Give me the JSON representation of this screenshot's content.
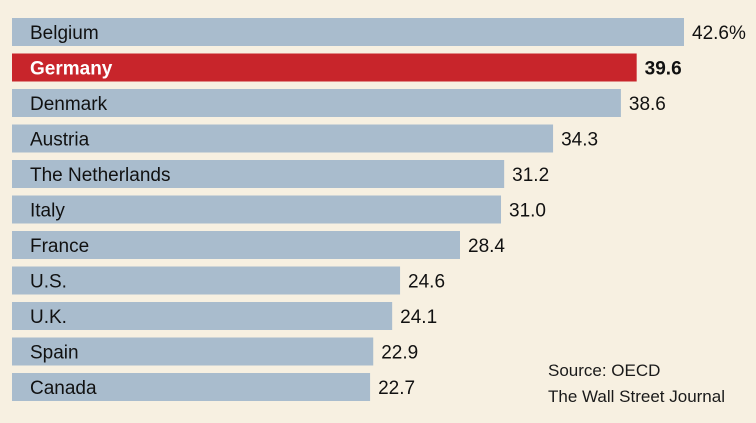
{
  "chart_data": {
    "type": "bar",
    "orientation": "horizontal",
    "categories": [
      "Belgium",
      "Germany",
      "Denmark",
      "Austria",
      "The Netherlands",
      "Italy",
      "France",
      "U.S.",
      "U.K.",
      "Spain",
      "Canada"
    ],
    "values": [
      42.6,
      39.6,
      38.6,
      34.3,
      31.2,
      31.0,
      28.4,
      24.6,
      24.1,
      22.9,
      22.7
    ],
    "value_labels": [
      "42.6%",
      "39.6",
      "38.6",
      "34.3",
      "31.2",
      "31.0",
      "28.4",
      "24.6",
      "24.1",
      "22.9",
      "22.7"
    ],
    "highlight": "Germany",
    "xlim": [
      0,
      42.6
    ],
    "grid": false,
    "legend": "none"
  },
  "colors": {
    "background": "#f7f0e1",
    "bar": "#a9bccd",
    "highlight": "#c8252b"
  },
  "source": {
    "line1": "Source: OECD",
    "line2": "The Wall Street Journal"
  }
}
